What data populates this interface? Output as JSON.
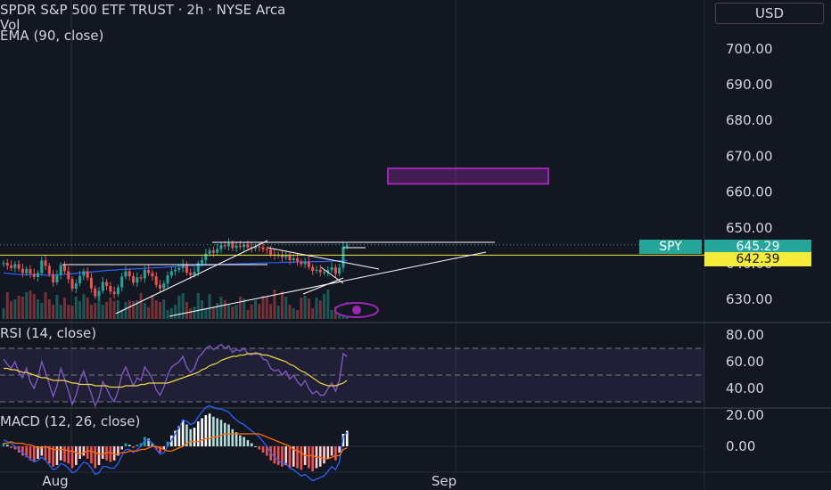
{
  "header": {
    "title": "SPDR S&P 500 ETF TRUST · 2h · NYSE Arca",
    "vol": "Vol",
    "ema": "EMA (90, close)"
  },
  "currency": "USD",
  "price_axis": {
    "ticks": [
      "700.00",
      "690.00",
      "680.00",
      "670.00",
      "660.00",
      "650.00",
      "640.00",
      "630.00"
    ]
  },
  "price_tags": {
    "symbol": "SPY",
    "last_price": "645.29",
    "level_price": "642.39"
  },
  "rsi": {
    "title": "RSI (14, close)",
    "ticks": [
      "80.00",
      "60.00",
      "40.00",
      "20.00"
    ]
  },
  "macd": {
    "title": "MACD (12, 26, close)",
    "ticks": [
      "0.00"
    ]
  },
  "time_axis": {
    "labels": [
      "Aug",
      "Sep"
    ]
  },
  "colors": {
    "up": "#26a69a",
    "down": "#ef5350",
    "ema": "#2962ff",
    "rsi": "#7e57c2",
    "rsi_ma": "#f0d34a",
    "level": "#f5eb3b",
    "box": "#9c27b0",
    "macd_line": "#2962ff",
    "signal_line": "#ff6d00",
    "hist_white": "#ffffff"
  },
  "chart_data": [
    {
      "type": "candlestick",
      "title": "SPDR S&P 500 ETF TRUST · 2h · NYSE Arca",
      "ylim": [
        625,
        705
      ],
      "y_ticks": [
        630,
        640,
        650,
        660,
        670,
        680,
        690,
        700
      ],
      "x_labels": [
        "Aug",
        "Sep"
      ],
      "last_price": 645.29,
      "horizontal_level": 642.39,
      "target_box": {
        "price_low": 662.3,
        "price_high": 666.6
      },
      "close": [
        640.2,
        639.5,
        638.8,
        639.9,
        638.6,
        637.4,
        638.5,
        637.2,
        636.3,
        637.4,
        640.9,
        639.4,
        637.1,
        634.8,
        636.8,
        639.6,
        637.9,
        635.7,
        633.0,
        634.5,
        636.6,
        637.9,
        636.1,
        633.1,
        630.9,
        632.4,
        634.9,
        633.8,
        632.2,
        631.5,
        633.4,
        636.4,
        637.9,
        636.5,
        634.7,
        636.2,
        635.9,
        638.3,
        637.4,
        636.5,
        634.1,
        633.1,
        634.5,
        636.7,
        637.9,
        638.3,
        638.8,
        639.9,
        637.5,
        636.8,
        637.7,
        640.1,
        641.0,
        642.8,
        643.7,
        643.1,
        644.1,
        645.2,
        644.9,
        645.7,
        644.4,
        645.0,
        644.7,
        645.3,
        644.6,
        644.3,
        644.8,
        644.6,
        644.0,
        643.9,
        642.6,
        642.3,
        642.5,
        641.8,
        642.3,
        641.0,
        641.5,
        640.6,
        639.9,
        640.6,
        639.1,
        638.0,
        638.3,
        637.6,
        637.6,
        638.2,
        639.0,
        637.2,
        638.9,
        644.8,
        645.3
      ],
      "volume": [
        12,
        30,
        20,
        22,
        26,
        25,
        30,
        32,
        28,
        22,
        18,
        30,
        22,
        16,
        27,
        16,
        24,
        16,
        15,
        25,
        20,
        28,
        24,
        16,
        18,
        25,
        16,
        19,
        24,
        20,
        21,
        10,
        19,
        21,
        20,
        21,
        29,
        18,
        13,
        27,
        21,
        19,
        22,
        10,
        12,
        16,
        26,
        29,
        19,
        12,
        14,
        29,
        21,
        12,
        28,
        13,
        18,
        25,
        21,
        16,
        14,
        16,
        25,
        23,
        10,
        16,
        21,
        17,
        26,
        25,
        17,
        33,
        15,
        31,
        25,
        16,
        12,
        10,
        24,
        26,
        23,
        12,
        24,
        21,
        28,
        33,
        10,
        14,
        12,
        12,
        19
      ],
      "ema_90": [
        637.4,
        637.3,
        637.2,
        637.1,
        637.0,
        637.0,
        636.9,
        636.9,
        636.9,
        636.9,
        636.9,
        636.8,
        636.8,
        636.8,
        636.9,
        637.0,
        637.0,
        637.1,
        637.2,
        637.3,
        637.4,
        637.5,
        637.6,
        637.7,
        637.8,
        637.9,
        638.0,
        638.1,
        638.2,
        638.2,
        638.3,
        638.4,
        638.4,
        638.5,
        638.5,
        638.6,
        638.6,
        638.7,
        638.8,
        638.8,
        638.9,
        638.9,
        639.0,
        639.1,
        639.1,
        639.2,
        639.3,
        639.3,
        639.4,
        639.4,
        639.4,
        639.5,
        639.5,
        639.6,
        639.6,
        639.7,
        639.7,
        639.8,
        639.8,
        639.9,
        639.9,
        639.9,
        640.0,
        640.0,
        640.0,
        640.1,
        640.1,
        640.2,
        640.2,
        640.2,
        640.3,
        640.3,
        640.3,
        640.4,
        640.4,
        640.4,
        640.4,
        640.5,
        640.5,
        640.5,
        640.5,
        640.6,
        640.6,
        640.6,
        640.6,
        640.7,
        640.7,
        640.8,
        640.8,
        640.9,
        640.9
      ]
    },
    {
      "type": "line",
      "title": "RSI (14, close)",
      "ylim": [
        20,
        80
      ],
      "y_ticks": [
        20,
        40,
        60,
        80
      ],
      "series": [
        {
          "values": [
            62,
            58,
            55,
            60,
            52,
            48,
            55,
            45,
            40,
            48,
            60,
            52,
            43,
            34,
            42,
            55,
            47,
            38,
            28,
            35,
            46,
            53,
            44,
            36,
            27,
            33,
            45,
            40,
            34,
            30,
            38,
            50,
            56,
            49,
            42,
            48,
            46,
            56,
            52,
            47,
            39,
            35,
            41,
            50,
            56,
            58,
            60,
            64,
            56,
            52,
            55,
            63,
            66,
            70,
            72,
            69,
            71,
            73,
            70,
            72,
            67,
            69,
            68,
            70,
            66,
            65,
            67,
            66,
            62,
            61,
            55,
            53,
            54,
            50,
            53,
            47,
            50,
            45,
            42,
            46,
            40,
            36,
            38,
            35,
            35,
            40,
            44,
            38,
            46,
            66,
            64
          ]
        },
        {
          "values": [
            55,
            55,
            54,
            54,
            53,
            52,
            52,
            51,
            50,
            49,
            48,
            48,
            47,
            46,
            46,
            46,
            46,
            45,
            44,
            44,
            43,
            43,
            43,
            43,
            42,
            42,
            42,
            42,
            41,
            41,
            41,
            41,
            42,
            42,
            42,
            42,
            43,
            43,
            44,
            44,
            44,
            44,
            44,
            44,
            45,
            46,
            47,
            48,
            49,
            50,
            51,
            52,
            54,
            55,
            57,
            58,
            59,
            61,
            62,
            63,
            64,
            64,
            65,
            65,
            66,
            66,
            66,
            66,
            65,
            65,
            64,
            63,
            62,
            61,
            60,
            58,
            57,
            55,
            53,
            52,
            50,
            48,
            46,
            44,
            43,
            42,
            42,
            42,
            43,
            44,
            46
          ]
        }
      ]
    },
    {
      "type": "bar",
      "title": "MACD (12, 26, close)",
      "ylim": [
        -1.3,
        1.3
      ],
      "y_ticks": [
        0
      ],
      "histogram": [
        0.1,
        0.05,
        -0.05,
        -0.1,
        -0.2,
        -0.3,
        -0.35,
        -0.45,
        -0.5,
        -0.4,
        -0.3,
        -0.45,
        -0.55,
        -0.65,
        -0.6,
        -0.45,
        -0.5,
        -0.55,
        -0.7,
        -0.6,
        -0.4,
        -0.3,
        -0.4,
        -0.55,
        -0.7,
        -0.6,
        -0.4,
        -0.45,
        -0.5,
        -0.45,
        -0.3,
        -0.1,
        0.1,
        0.05,
        -0.05,
        0.05,
        0.1,
        0.3,
        0.25,
        0.1,
        -0.1,
        -0.2,
        -0.1,
        0.15,
        0.35,
        0.5,
        0.65,
        0.85,
        0.7,
        0.55,
        0.6,
        0.8,
        0.9,
        1.0,
        1.05,
        0.95,
        0.9,
        0.85,
        0.75,
        0.7,
        0.55,
        0.45,
        0.35,
        0.3,
        0.2,
        0.1,
        0.0,
        -0.1,
        -0.2,
        -0.3,
        -0.45,
        -0.55,
        -0.6,
        -0.65,
        -0.6,
        -0.7,
        -0.65,
        -0.7,
        -0.75,
        -0.6,
        -0.7,
        -0.8,
        -0.7,
        -0.65,
        -0.55,
        -0.4,
        -0.3,
        -0.45,
        -0.2,
        0.4,
        0.5
      ],
      "macd_line": [
        0.2,
        0.15,
        0.1,
        0.0,
        -0.1,
        -0.2,
        -0.3,
        -0.4,
        -0.5,
        -0.45,
        -0.35,
        -0.45,
        -0.6,
        -0.75,
        -0.7,
        -0.55,
        -0.6,
        -0.7,
        -0.85,
        -0.8,
        -0.65,
        -0.5,
        -0.55,
        -0.7,
        -0.9,
        -0.85,
        -0.65,
        -0.65,
        -0.7,
        -0.7,
        -0.55,
        -0.3,
        -0.1,
        -0.1,
        -0.2,
        -0.1,
        0.0,
        0.2,
        0.2,
        0.1,
        -0.1,
        -0.25,
        -0.2,
        0.0,
        0.2,
        0.4,
        0.6,
        0.85,
        0.8,
        0.7,
        0.75,
        0.95,
        1.1,
        1.25,
        1.3,
        1.25,
        1.2,
        1.2,
        1.15,
        1.1,
        0.95,
        0.85,
        0.75,
        0.7,
        0.6,
        0.5,
        0.4,
        0.3,
        0.15,
        0.0,
        -0.2,
        -0.35,
        -0.45,
        -0.55,
        -0.55,
        -0.7,
        -0.75,
        -0.85,
        -0.95,
        -0.9,
        -1.0,
        -1.1,
        -1.05,
        -1.0,
        -0.95,
        -0.8,
        -0.65,
        -0.75,
        -0.5,
        0.3,
        0.45
      ],
      "signal_line": [
        0.1,
        0.1,
        0.15,
        0.1,
        0.1,
        0.1,
        0.05,
        0.05,
        0.0,
        -0.05,
        -0.05,
        0.0,
        -0.05,
        -0.1,
        -0.1,
        -0.1,
        -0.1,
        -0.15,
        -0.15,
        -0.2,
        -0.25,
        -0.2,
        -0.15,
        -0.15,
        -0.2,
        -0.25,
        -0.25,
        -0.2,
        -0.2,
        -0.25,
        -0.25,
        -0.2,
        -0.2,
        -0.15,
        -0.15,
        -0.15,
        -0.1,
        -0.1,
        -0.05,
        0.0,
        0.0,
        -0.05,
        -0.1,
        -0.15,
        -0.15,
        -0.1,
        -0.05,
        0.0,
        0.1,
        0.15,
        0.15,
        0.15,
        0.2,
        0.25,
        0.25,
        0.3,
        0.3,
        0.35,
        0.4,
        0.4,
        0.4,
        0.4,
        0.4,
        0.4,
        0.4,
        0.4,
        0.4,
        0.4,
        0.35,
        0.3,
        0.25,
        0.2,
        0.15,
        0.1,
        0.05,
        0.0,
        -0.1,
        -0.15,
        -0.2,
        -0.3,
        -0.3,
        -0.3,
        -0.35,
        -0.35,
        -0.4,
        -0.4,
        -0.35,
        -0.3,
        -0.3,
        -0.1,
        -0.05
      ]
    }
  ]
}
